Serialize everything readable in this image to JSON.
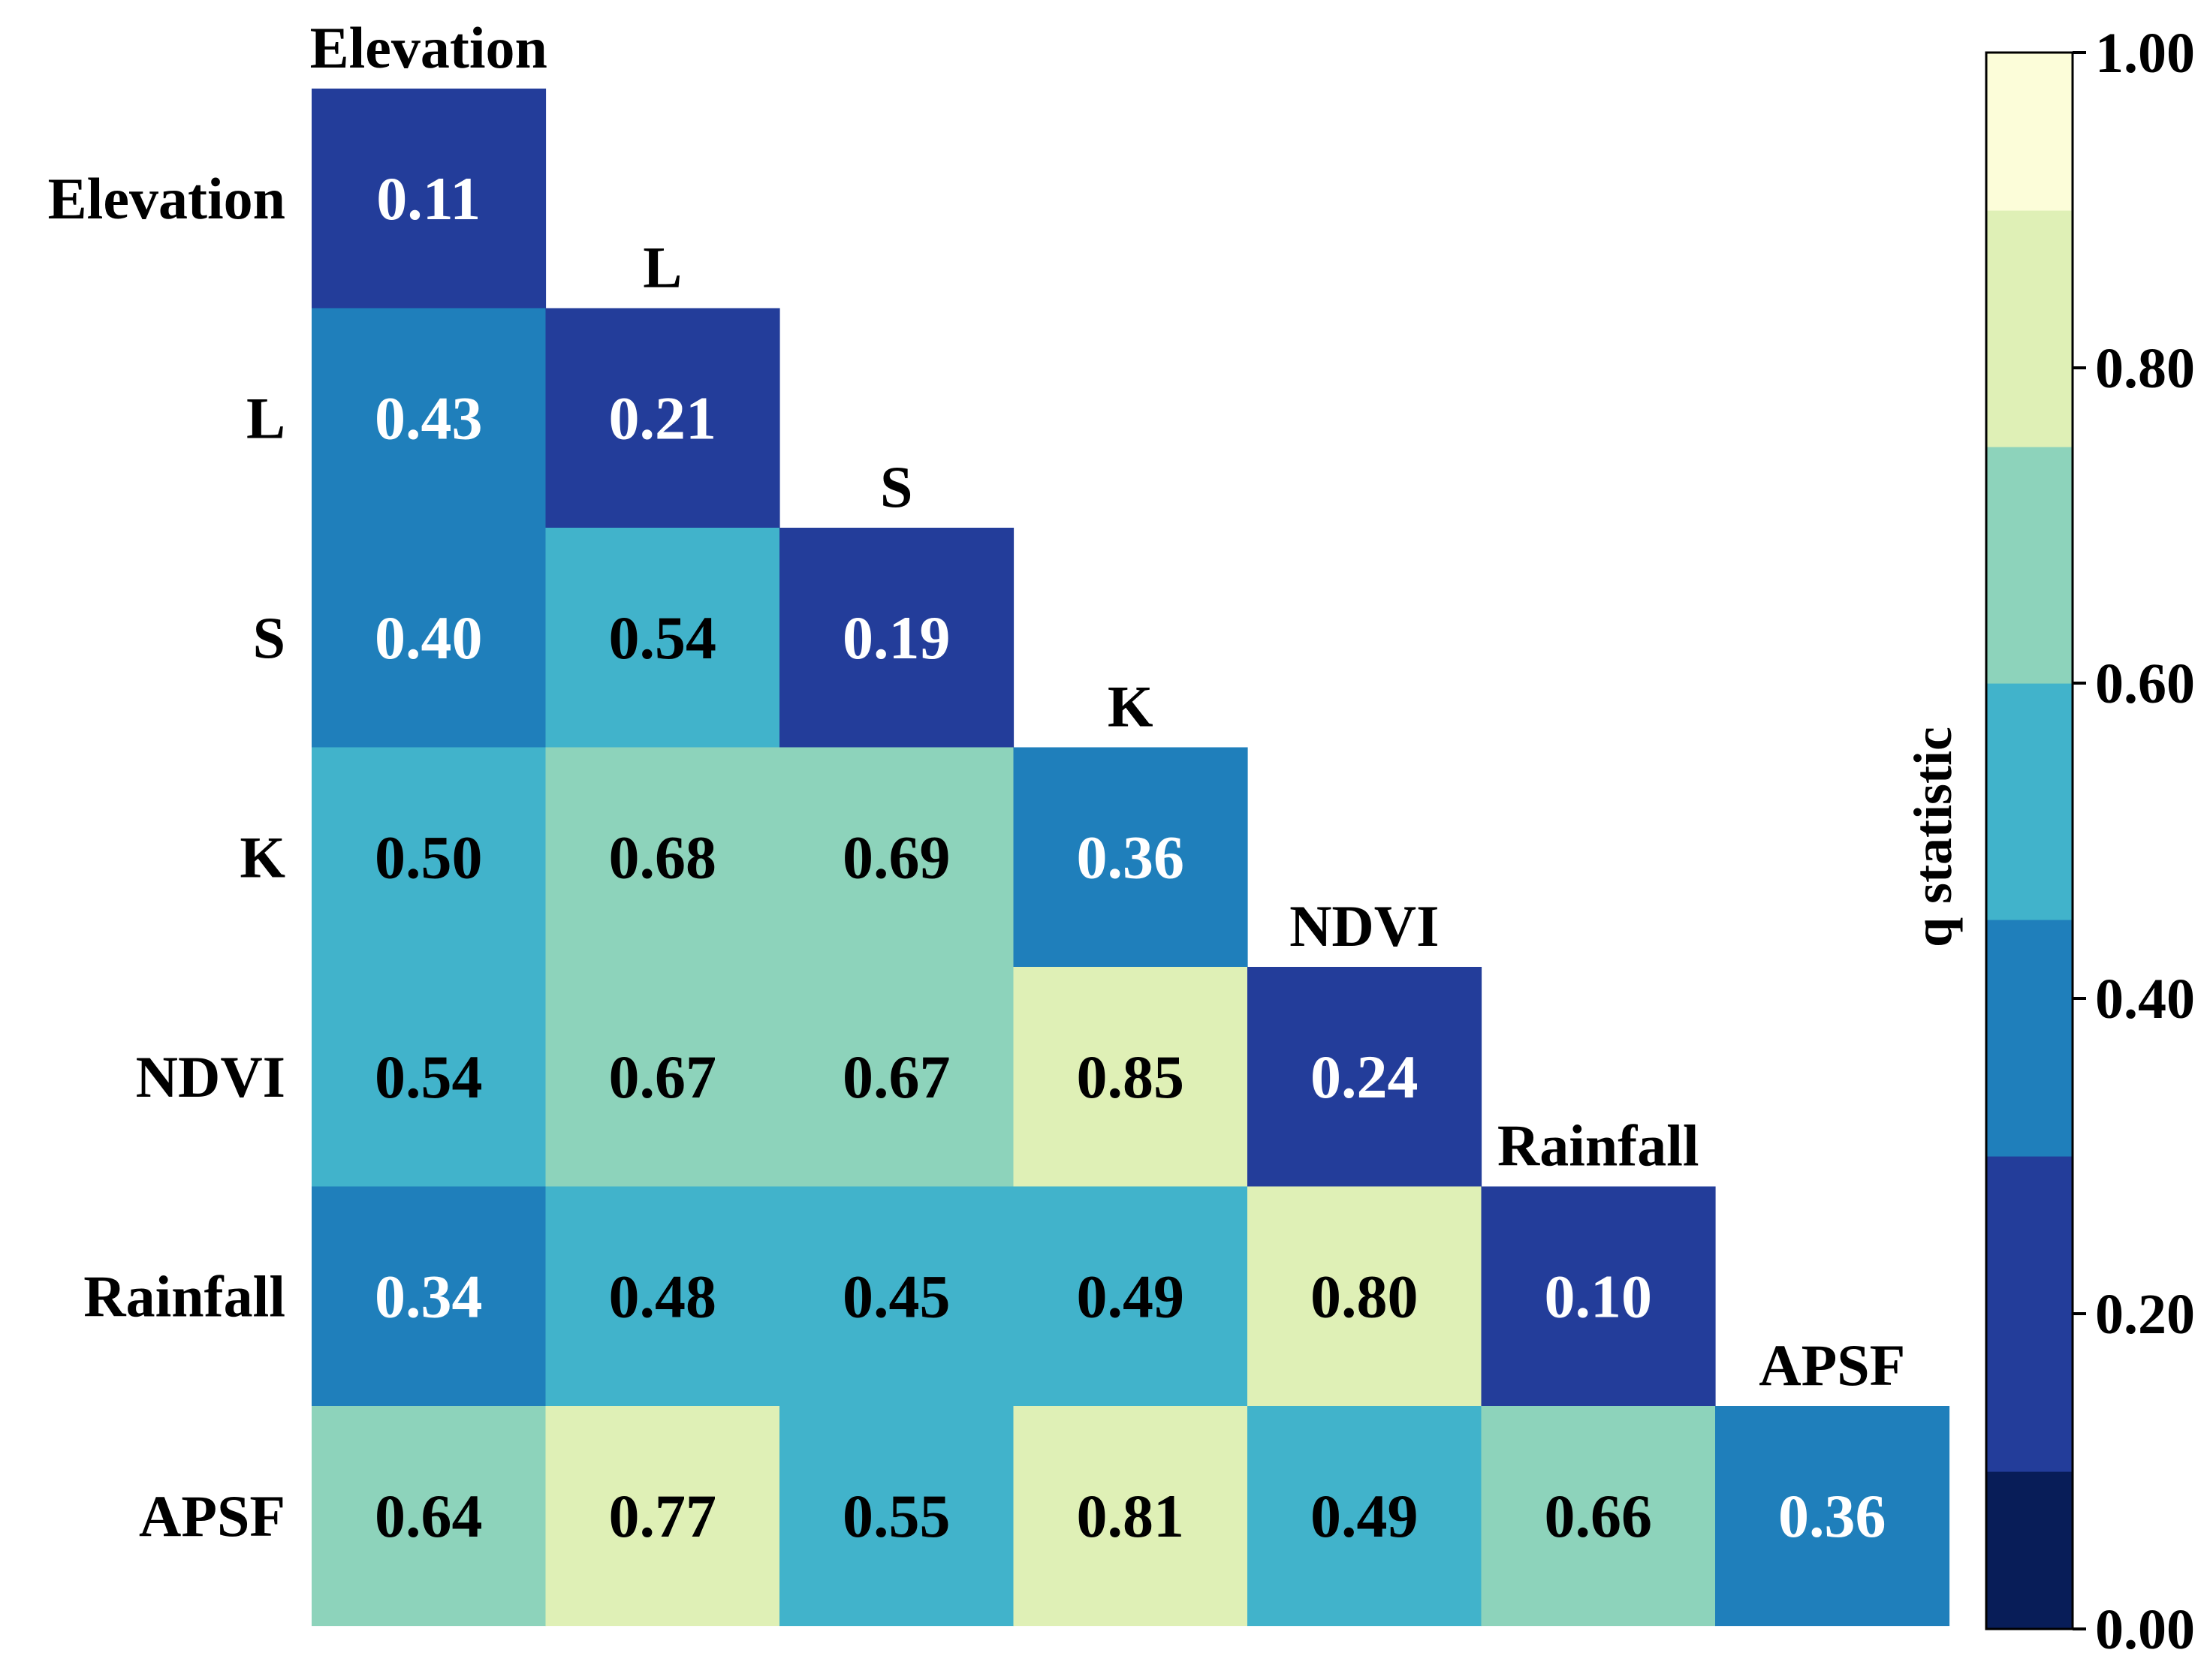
{
  "chart_data": {
    "type": "heatmap",
    "title": "",
    "layout": "lower-triangle",
    "variables": [
      "Elevation",
      "L",
      "S",
      "K",
      "NDVI",
      "Rainfall",
      "APSF"
    ],
    "values": [
      [
        0.11
      ],
      [
        0.43,
        0.21
      ],
      [
        0.4,
        0.54,
        0.19
      ],
      [
        0.5,
        0.68,
        0.69,
        0.36
      ],
      [
        0.54,
        0.67,
        0.67,
        0.85,
        0.24
      ],
      [
        0.34,
        0.48,
        0.45,
        0.49,
        0.8,
        0.1
      ],
      [
        0.64,
        0.77,
        0.55,
        0.81,
        0.49,
        0.66,
        0.36
      ]
    ],
    "value_labels": [
      [
        "0.11"
      ],
      [
        "0.43",
        "0.21"
      ],
      [
        "0.40",
        "0.54",
        "0.19"
      ],
      [
        "0.50",
        "0.68",
        "0.69",
        "0.36"
      ],
      [
        "0.54",
        "0.67",
        "0.67",
        "0.85",
        "0.24"
      ],
      [
        "0.34",
        "0.48",
        "0.45",
        "0.49",
        "0.80",
        "0.10"
      ],
      [
        "0.64",
        "0.77",
        "0.55",
        "0.81",
        "0.49",
        "0.66",
        "0.36"
      ]
    ],
    "colorbar": {
      "label": "q statistic",
      "range": [
        0.0,
        1.0
      ],
      "ticks": [
        0.0,
        0.2,
        0.4,
        0.6,
        0.8,
        1.0
      ],
      "tick_labels": [
        "0.00",
        "0.20",
        "0.40",
        "0.60",
        "0.80",
        "1.00"
      ],
      "bins": [
        {
          "from": 0.0,
          "to": 0.1,
          "color": "#081d58"
        },
        {
          "from": 0.1,
          "to": 0.3,
          "color": "#233d9a"
        },
        {
          "from": 0.3,
          "to": 0.45,
          "color": "#1f7fbb"
        },
        {
          "from": 0.45,
          "to": 0.6,
          "color": "#41b3cb"
        },
        {
          "from": 0.6,
          "to": 0.75,
          "color": "#8dd3bb"
        },
        {
          "from": 0.75,
          "to": 0.9,
          "color": "#dff0b6"
        },
        {
          "from": 0.9,
          "to": 1.0,
          "color": "#fcfdd9"
        }
      ]
    },
    "text_colors": {
      "dark_cell": "#ffffff",
      "light_cell": "#000000"
    }
  }
}
